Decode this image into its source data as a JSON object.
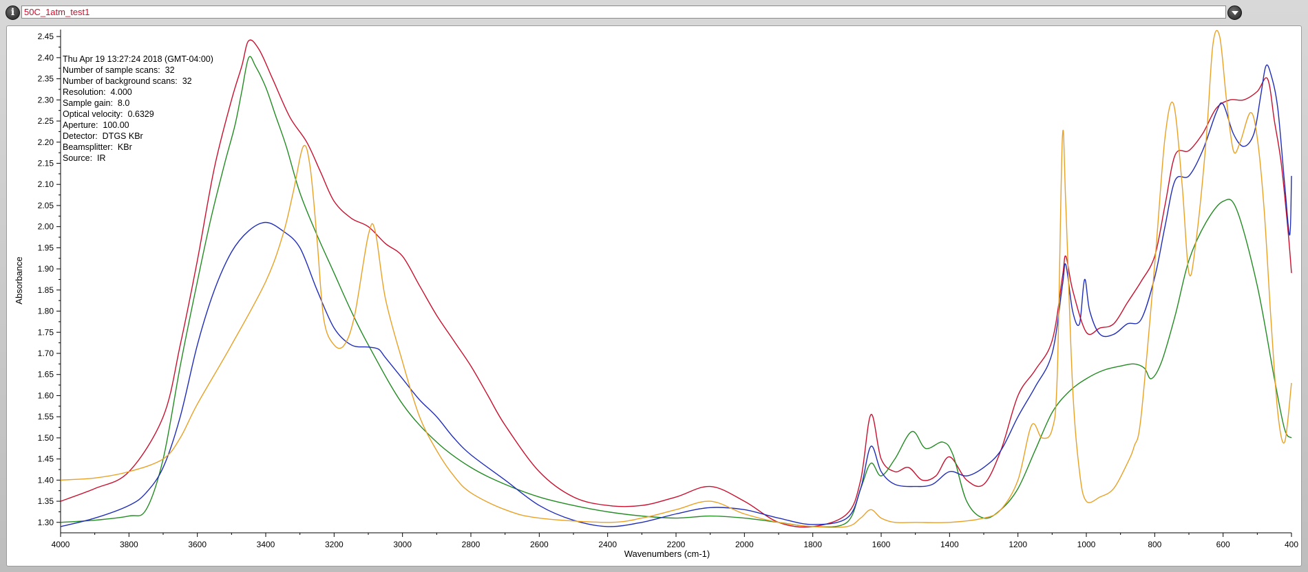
{
  "title_bar": {
    "filename": "50C_1atm_test1",
    "info_icon": "info-icon",
    "dropdown_icon": "chevron-down-icon"
  },
  "info": [
    "Thu Apr 19 13:27:24 2018 (GMT-04:00)",
    "Number of sample scans:  32",
    "Number of background scans:  32",
    "Resolution:  4.000",
    "Sample gain:  8.0",
    "Optical velocity:  0.6329",
    "Aperture:  100.00",
    "Detector:  DTGS KBr",
    "Beamsplitter:  KBr",
    "Source:  IR"
  ],
  "chart_data": {
    "type": "line",
    "title": "",
    "xlabel": "Wavenumbers (cm-1)",
    "ylabel": "Absorbance",
    "xlim": [
      4000,
      400
    ],
    "ylim": [
      1.285,
      2.46
    ],
    "x_reversed": true,
    "grid": false,
    "x_ticks": [
      "4000",
      "3800",
      "3600",
      "3400",
      "3200",
      "3000",
      "2800",
      "2600",
      "2400",
      "2200",
      "2000",
      "1800",
      "1600",
      "1400",
      "1200",
      "1000",
      "800",
      "600",
      "400"
    ],
    "y_ticks": [
      "1.30",
      "1.35",
      "1.40",
      "1.45",
      "1.50",
      "1.55",
      "1.60",
      "1.65",
      "1.70",
      "1.75",
      "1.80",
      "1.85",
      "1.90",
      "1.95",
      "2.00",
      "2.05",
      "2.10",
      "2.15",
      "2.20",
      "2.25",
      "2.30",
      "2.35",
      "2.40",
      "2.45"
    ],
    "series": [
      {
        "color": "#c8102e",
        "points": [
          [
            4000,
            1.35
          ],
          [
            3900,
            1.38
          ],
          [
            3800,
            1.42
          ],
          [
            3700,
            1.55
          ],
          [
            3650,
            1.72
          ],
          [
            3600,
            1.92
          ],
          [
            3550,
            2.14
          ],
          [
            3500,
            2.3
          ],
          [
            3470,
            2.38
          ],
          [
            3450,
            2.44
          ],
          [
            3420,
            2.42
          ],
          [
            3380,
            2.35
          ],
          [
            3330,
            2.26
          ],
          [
            3280,
            2.2
          ],
          [
            3240,
            2.13
          ],
          [
            3200,
            2.06
          ],
          [
            3150,
            2.02
          ],
          [
            3100,
            2.0
          ],
          [
            3050,
            1.96
          ],
          [
            3000,
            1.93
          ],
          [
            2950,
            1.86
          ],
          [
            2900,
            1.79
          ],
          [
            2850,
            1.73
          ],
          [
            2800,
            1.67
          ],
          [
            2750,
            1.6
          ],
          [
            2700,
            1.53
          ],
          [
            2600,
            1.42
          ],
          [
            2500,
            1.36
          ],
          [
            2400,
            1.34
          ],
          [
            2300,
            1.34
          ],
          [
            2200,
            1.36
          ],
          [
            2100,
            1.385
          ],
          [
            2000,
            1.35
          ],
          [
            1900,
            1.3
          ],
          [
            1800,
            1.29
          ],
          [
            1700,
            1.32
          ],
          [
            1660,
            1.4
          ],
          [
            1630,
            1.555
          ],
          [
            1600,
            1.45
          ],
          [
            1560,
            1.42
          ],
          [
            1520,
            1.43
          ],
          [
            1480,
            1.4
          ],
          [
            1440,
            1.41
          ],
          [
            1400,
            1.455
          ],
          [
            1350,
            1.4
          ],
          [
            1300,
            1.39
          ],
          [
            1250,
            1.47
          ],
          [
            1200,
            1.6
          ],
          [
            1150,
            1.66
          ],
          [
            1100,
            1.73
          ],
          [
            1070,
            1.88
          ],
          [
            1060,
            1.93
          ],
          [
            1040,
            1.85
          ],
          [
            1000,
            1.75
          ],
          [
            960,
            1.76
          ],
          [
            920,
            1.77
          ],
          [
            880,
            1.82
          ],
          [
            840,
            1.87
          ],
          [
            800,
            1.93
          ],
          [
            770,
            2.05
          ],
          [
            740,
            2.17
          ],
          [
            700,
            2.18
          ],
          [
            660,
            2.22
          ],
          [
            620,
            2.28
          ],
          [
            580,
            2.3
          ],
          [
            540,
            2.3
          ],
          [
            500,
            2.32
          ],
          [
            470,
            2.35
          ],
          [
            450,
            2.25
          ],
          [
            430,
            2.15
          ],
          [
            410,
            1.99
          ],
          [
            400,
            1.89
          ]
        ]
      },
      {
        "color": "#228B22",
        "points": [
          [
            4000,
            1.3
          ],
          [
            3900,
            1.305
          ],
          [
            3800,
            1.315
          ],
          [
            3750,
            1.33
          ],
          [
            3700,
            1.45
          ],
          [
            3650,
            1.67
          ],
          [
            3600,
            1.87
          ],
          [
            3560,
            2.02
          ],
          [
            3520,
            2.15
          ],
          [
            3490,
            2.24
          ],
          [
            3470,
            2.32
          ],
          [
            3450,
            2.4
          ],
          [
            3430,
            2.38
          ],
          [
            3400,
            2.33
          ],
          [
            3370,
            2.26
          ],
          [
            3340,
            2.19
          ],
          [
            3300,
            2.08
          ],
          [
            3250,
            1.98
          ],
          [
            3200,
            1.89
          ],
          [
            3150,
            1.8
          ],
          [
            3100,
            1.72
          ],
          [
            3000,
            1.58
          ],
          [
            2900,
            1.49
          ],
          [
            2800,
            1.43
          ],
          [
            2700,
            1.39
          ],
          [
            2600,
            1.36
          ],
          [
            2500,
            1.34
          ],
          [
            2400,
            1.325
          ],
          [
            2300,
            1.315
          ],
          [
            2200,
            1.31
          ],
          [
            2100,
            1.315
          ],
          [
            2000,
            1.31
          ],
          [
            1900,
            1.3
          ],
          [
            1800,
            1.29
          ],
          [
            1700,
            1.3
          ],
          [
            1660,
            1.38
          ],
          [
            1630,
            1.44
          ],
          [
            1600,
            1.41
          ],
          [
            1560,
            1.45
          ],
          [
            1510,
            1.515
          ],
          [
            1470,
            1.475
          ],
          [
            1420,
            1.49
          ],
          [
            1390,
            1.46
          ],
          [
            1350,
            1.35
          ],
          [
            1300,
            1.31
          ],
          [
            1250,
            1.33
          ],
          [
            1200,
            1.38
          ],
          [
            1150,
            1.47
          ],
          [
            1100,
            1.56
          ],
          [
            1050,
            1.61
          ],
          [
            1000,
            1.64
          ],
          [
            950,
            1.66
          ],
          [
            900,
            1.67
          ],
          [
            860,
            1.675
          ],
          [
            830,
            1.665
          ],
          [
            810,
            1.64
          ],
          [
            780,
            1.68
          ],
          [
            740,
            1.79
          ],
          [
            700,
            1.92
          ],
          [
            650,
            2.01
          ],
          [
            600,
            2.06
          ],
          [
            560,
            2.04
          ],
          [
            500,
            1.86
          ],
          [
            450,
            1.64
          ],
          [
            420,
            1.52
          ],
          [
            400,
            1.5
          ]
        ]
      },
      {
        "color": "#1f2cb8",
        "points": [
          [
            4000,
            1.29
          ],
          [
            3900,
            1.31
          ],
          [
            3800,
            1.34
          ],
          [
            3750,
            1.37
          ],
          [
            3700,
            1.43
          ],
          [
            3650,
            1.55
          ],
          [
            3600,
            1.72
          ],
          [
            3550,
            1.85
          ],
          [
            3500,
            1.94
          ],
          [
            3450,
            1.99
          ],
          [
            3400,
            2.01
          ],
          [
            3350,
            1.99
          ],
          [
            3300,
            1.95
          ],
          [
            3250,
            1.85
          ],
          [
            3200,
            1.76
          ],
          [
            3150,
            1.72
          ],
          [
            3100,
            1.715
          ],
          [
            3070,
            1.71
          ],
          [
            3050,
            1.69
          ],
          [
            3000,
            1.64
          ],
          [
            2950,
            1.59
          ],
          [
            2900,
            1.55
          ],
          [
            2850,
            1.5
          ],
          [
            2800,
            1.46
          ],
          [
            2700,
            1.4
          ],
          [
            2600,
            1.34
          ],
          [
            2500,
            1.305
          ],
          [
            2400,
            1.29
          ],
          [
            2300,
            1.3
          ],
          [
            2200,
            1.32
          ],
          [
            2100,
            1.335
          ],
          [
            2000,
            1.33
          ],
          [
            1900,
            1.31
          ],
          [
            1800,
            1.295
          ],
          [
            1700,
            1.31
          ],
          [
            1660,
            1.38
          ],
          [
            1630,
            1.48
          ],
          [
            1600,
            1.42
          ],
          [
            1560,
            1.39
          ],
          [
            1500,
            1.385
          ],
          [
            1450,
            1.39
          ],
          [
            1400,
            1.42
          ],
          [
            1350,
            1.41
          ],
          [
            1300,
            1.43
          ],
          [
            1250,
            1.47
          ],
          [
            1200,
            1.55
          ],
          [
            1150,
            1.62
          ],
          [
            1100,
            1.7
          ],
          [
            1070,
            1.86
          ],
          [
            1060,
            1.91
          ],
          [
            1040,
            1.8
          ],
          [
            1020,
            1.77
          ],
          [
            1005,
            1.875
          ],
          [
            990,
            1.8
          ],
          [
            960,
            1.745
          ],
          [
            920,
            1.745
          ],
          [
            880,
            1.77
          ],
          [
            840,
            1.78
          ],
          [
            800,
            1.88
          ],
          [
            770,
            2.0
          ],
          [
            740,
            2.11
          ],
          [
            700,
            2.12
          ],
          [
            660,
            2.18
          ],
          [
            620,
            2.27
          ],
          [
            600,
            2.29
          ],
          [
            570,
            2.22
          ],
          [
            540,
            2.19
          ],
          [
            510,
            2.22
          ],
          [
            490,
            2.31
          ],
          [
            475,
            2.38
          ],
          [
            460,
            2.36
          ],
          [
            440,
            2.28
          ],
          [
            420,
            2.1
          ],
          [
            405,
            1.98
          ],
          [
            400,
            2.12
          ]
        ]
      },
      {
        "color": "#e8a125",
        "points": [
          [
            4000,
            1.4
          ],
          [
            3900,
            1.405
          ],
          [
            3800,
            1.42
          ],
          [
            3700,
            1.45
          ],
          [
            3650,
            1.5
          ],
          [
            3600,
            1.58
          ],
          [
            3500,
            1.72
          ],
          [
            3400,
            1.87
          ],
          [
            3350,
            1.98
          ],
          [
            3320,
            2.08
          ],
          [
            3290,
            2.19
          ],
          [
            3270,
            2.14
          ],
          [
            3250,
            1.97
          ],
          [
            3230,
            1.78
          ],
          [
            3200,
            1.72
          ],
          [
            3170,
            1.72
          ],
          [
            3140,
            1.79
          ],
          [
            3100,
            1.98
          ],
          [
            3080,
            1.99
          ],
          [
            3050,
            1.83
          ],
          [
            3000,
            1.68
          ],
          [
            2950,
            1.55
          ],
          [
            2900,
            1.47
          ],
          [
            2850,
            1.41
          ],
          [
            2800,
            1.37
          ],
          [
            2700,
            1.33
          ],
          [
            2600,
            1.31
          ],
          [
            2400,
            1.3
          ],
          [
            2300,
            1.31
          ],
          [
            2200,
            1.33
          ],
          [
            2100,
            1.35
          ],
          [
            2000,
            1.32
          ],
          [
            1900,
            1.3
          ],
          [
            1800,
            1.29
          ],
          [
            1700,
            1.29
          ],
          [
            1660,
            1.31
          ],
          [
            1630,
            1.33
          ],
          [
            1600,
            1.31
          ],
          [
            1560,
            1.3
          ],
          [
            1500,
            1.3
          ],
          [
            1400,
            1.3
          ],
          [
            1300,
            1.31
          ],
          [
            1250,
            1.33
          ],
          [
            1200,
            1.4
          ],
          [
            1160,
            1.53
          ],
          [
            1130,
            1.5
          ],
          [
            1100,
            1.52
          ],
          [
            1085,
            1.65
          ],
          [
            1070,
            2.21
          ],
          [
            1060,
            2.05
          ],
          [
            1040,
            1.62
          ],
          [
            1020,
            1.42
          ],
          [
            1000,
            1.35
          ],
          [
            960,
            1.36
          ],
          [
            920,
            1.38
          ],
          [
            880,
            1.44
          ],
          [
            860,
            1.48
          ],
          [
            840,
            1.55
          ],
          [
            800,
            1.91
          ],
          [
            770,
            2.21
          ],
          [
            745,
            2.29
          ],
          [
            720,
            2.1
          ],
          [
            700,
            1.89
          ],
          [
            680,
            1.96
          ],
          [
            650,
            2.2
          ],
          [
            630,
            2.43
          ],
          [
            610,
            2.45
          ],
          [
            590,
            2.3
          ],
          [
            570,
            2.18
          ],
          [
            550,
            2.2
          ],
          [
            520,
            2.27
          ],
          [
            500,
            2.21
          ],
          [
            480,
            2.04
          ],
          [
            460,
            1.78
          ],
          [
            440,
            1.56
          ],
          [
            420,
            1.49
          ],
          [
            400,
            1.63
          ]
        ]
      }
    ]
  }
}
